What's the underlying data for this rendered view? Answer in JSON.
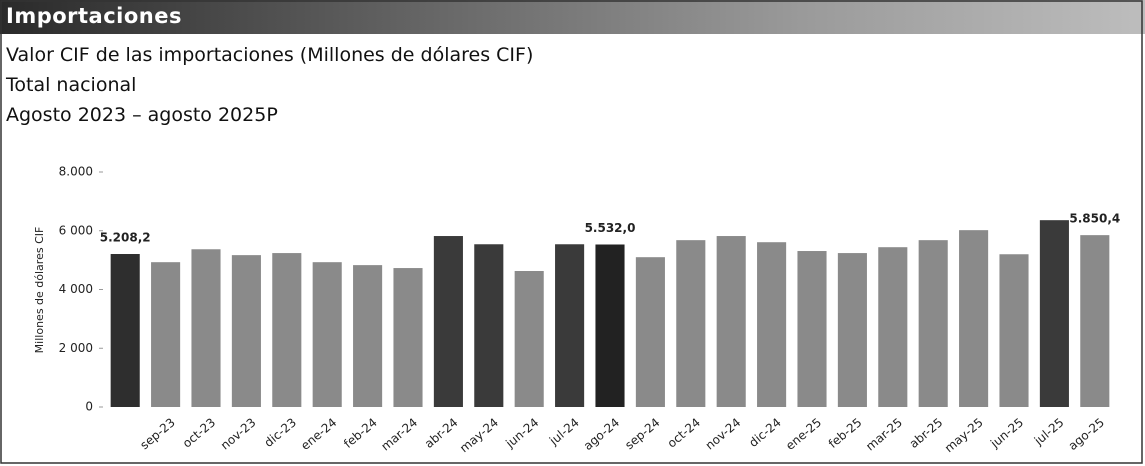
{
  "header": {
    "title": "Importaciones"
  },
  "chart_data": {
    "type": "bar",
    "title": "Valor CIF de las importaciones (Millones de dólares CIF)",
    "subtitle": "Total nacional",
    "period": "Agosto 2023 – agosto 2025P",
    "ylabel": "Millones de dólares CIF",
    "categories": [
      null,
      "sep-23",
      "oct-23",
      "nov-23",
      "dic-23",
      "ene-24",
      "feb-24",
      "mar-24",
      "abr-24",
      "may-24",
      "jun-24",
      "jul-24",
      "ago-24",
      "sep-24",
      "oct-24",
      "nov-24",
      "dic-24",
      "ene-25",
      "feb-25",
      "mar-25",
      "abr-25",
      "may-25",
      "jun-25",
      "jul-25",
      "ago-25"
    ],
    "values": [
      5208.2,
      4930,
      5370,
      5170,
      5240,
      4930,
      4830,
      4730,
      5820,
      5540,
      4630,
      5540,
      5532.0,
      5100,
      5680,
      5820,
      5610,
      5310,
      5240,
      5440,
      5680,
      6020,
      5200,
      6360,
      5850.4
    ],
    "value_labels": [
      "5.208,2",
      null,
      null,
      null,
      null,
      null,
      null,
      null,
      null,
      null,
      null,
      null,
      "5.532,0",
      null,
      null,
      null,
      null,
      null,
      null,
      null,
      null,
      null,
      null,
      null,
      "5.850,4"
    ],
    "colors": [
      "#2e2e2e",
      "#8a8a8a",
      "#8a8a8a",
      "#8a8a8a",
      "#8a8a8a",
      "#8a8a8a",
      "#8a8a8a",
      "#8a8a8a",
      "#3a3a3a",
      "#3a3a3a",
      "#8a8a8a",
      "#3a3a3a",
      "#222222",
      "#8a8a8a",
      "#8a8a8a",
      "#8a8a8a",
      "#8a8a8a",
      "#8a8a8a",
      "#8a8a8a",
      "#8a8a8a",
      "#8a8a8a",
      "#8a8a8a",
      "#8a8a8a",
      "#3a3a3a",
      "#8a8a8a"
    ],
    "ylim": [
      0,
      8000
    ],
    "yticks": [
      0,
      {
        "value": 2000,
        "label": "2 000"
      },
      {
        "value": 4000,
        "label": "4 000"
      },
      {
        "value": 6000,
        "label": "6 000"
      },
      {
        "value": 8000,
        "label": "8.000"
      }
    ],
    "grid": false
  }
}
